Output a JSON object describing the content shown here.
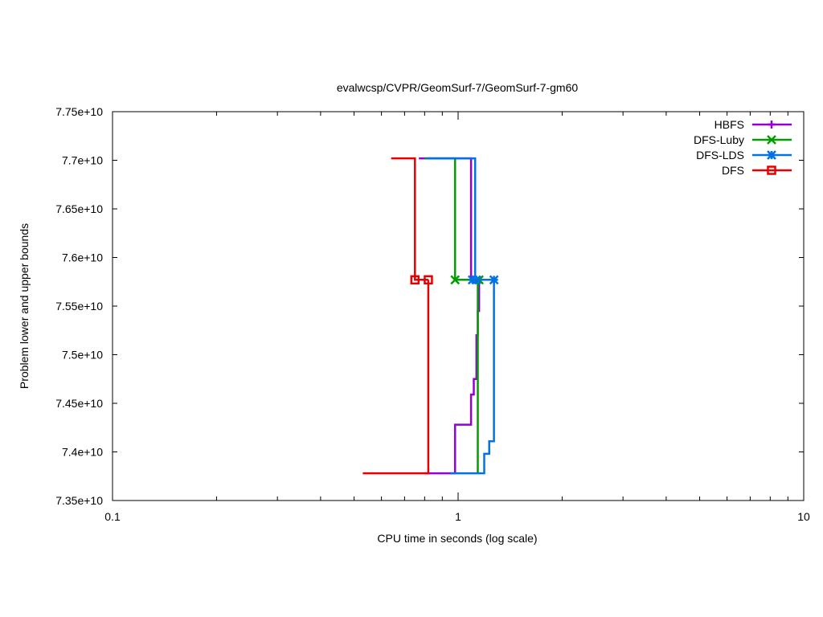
{
  "chart_data": {
    "type": "line",
    "title": "evalwcsp/CVPR/GeomSurf-7/GeomSurf-7-gm60",
    "xlabel": "CPU time in seconds (log scale)",
    "ylabel": "Problem lower and upper bounds",
    "x_scale": "log",
    "xlim": [
      0.1,
      10
    ],
    "ylim": [
      73500000000,
      77500000000
    ],
    "x_ticks": [
      0.1,
      1,
      10
    ],
    "x_tick_labels": [
      "0.1",
      "1",
      "10"
    ],
    "y_ticks": [
      73500000000,
      74000000000,
      74500000000,
      75000000000,
      75500000000,
      76000000000,
      76500000000,
      77000000000,
      77500000000
    ],
    "y_tick_labels": [
      "7.35e+10",
      "7.4e+10",
      "7.45e+10",
      "7.5e+10",
      "7.55e+10",
      "7.6e+10",
      "7.65e+10",
      "7.7e+10",
      "7.75e+10"
    ],
    "grid": false,
    "legend_position": "top-right",
    "series": [
      {
        "name": "HBFS",
        "color": "#9400d3",
        "marker": "plus",
        "upper": [
          [
            0.77,
            77020000000
          ],
          [
            1.09,
            77020000000
          ],
          [
            1.09,
            75770000000
          ],
          [
            1.12,
            75770000000
          ]
        ],
        "lower": [
          [
            0.8,
            73780000000
          ],
          [
            0.98,
            73780000000
          ],
          [
            0.98,
            74280000000
          ],
          [
            1.09,
            74280000000
          ],
          [
            1.09,
            74590000000
          ],
          [
            1.11,
            74590000000
          ],
          [
            1.11,
            74750000000
          ],
          [
            1.13,
            74750000000
          ],
          [
            1.13,
            75200000000
          ],
          [
            1.14,
            75200000000
          ],
          [
            1.14,
            75450000000
          ],
          [
            1.15,
            75450000000
          ],
          [
            1.15,
            75770000000
          ]
        ],
        "markers": [
          [
            1.12,
            75770000000
          ]
        ]
      },
      {
        "name": "DFS-Luby",
        "color": "#009e00",
        "marker": "x",
        "upper": [
          [
            0.8,
            77020000000
          ],
          [
            0.98,
            77020000000
          ],
          [
            0.98,
            75770000000
          ],
          [
            1.15,
            75770000000
          ]
        ],
        "lower": [
          [
            1.14,
            73780000000
          ],
          [
            1.14,
            75770000000
          ]
        ],
        "markers": [
          [
            0.98,
            75770000000
          ],
          [
            1.15,
            75770000000
          ]
        ]
      },
      {
        "name": "DFS-LDS",
        "color": "#0072e6",
        "marker": "star",
        "upper": [
          [
            0.81,
            77020000000
          ],
          [
            1.12,
            77020000000
          ],
          [
            1.12,
            75770000000
          ],
          [
            1.27,
            75770000000
          ]
        ],
        "lower": [
          [
            0.95,
            73780000000
          ],
          [
            1.19,
            73780000000
          ],
          [
            1.19,
            73980000000
          ],
          [
            1.23,
            73980000000
          ],
          [
            1.23,
            74110000000
          ],
          [
            1.27,
            74110000000
          ],
          [
            1.27,
            75770000000
          ]
        ],
        "markers": [
          [
            1.1,
            75770000000
          ],
          [
            1.13,
            75770000000
          ],
          [
            1.27,
            75770000000
          ]
        ]
      },
      {
        "name": "DFS",
        "color": "#e60000",
        "marker": "square",
        "upper": [
          [
            0.64,
            77020000000
          ],
          [
            0.75,
            77020000000
          ],
          [
            0.75,
            75770000000
          ],
          [
            0.82,
            75770000000
          ]
        ],
        "lower": [
          [
            0.53,
            73780000000
          ],
          [
            0.82,
            73780000000
          ],
          [
            0.82,
            75770000000
          ]
        ],
        "markers": [
          [
            0.75,
            75770000000
          ],
          [
            0.82,
            75770000000
          ]
        ]
      }
    ]
  }
}
